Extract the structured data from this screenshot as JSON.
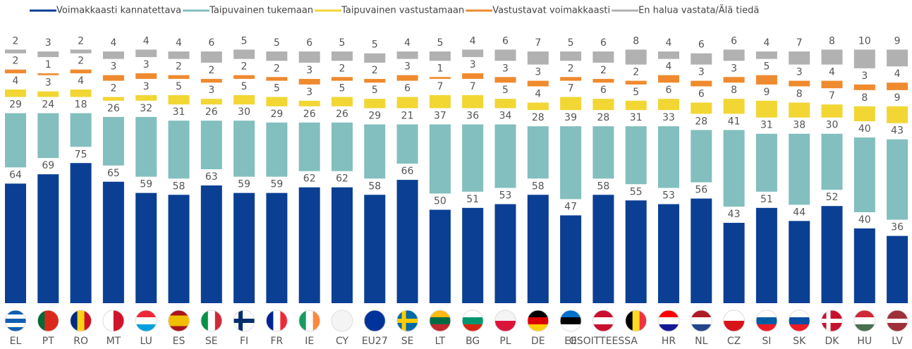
{
  "chart_data": {
    "type": "stacked-bar",
    "categories": [
      "EL",
      "PT",
      "RO",
      "MT",
      "LU",
      "ES",
      "SE",
      "FI",
      "FR",
      "IE",
      "CY",
      "EU27",
      "SE",
      "LT",
      "BG",
      "PL",
      "DE",
      "EE",
      "OSOITTEESSA",
      null,
      "HR",
      "NL",
      "CZ",
      "SI",
      "SK",
      "DK",
      "HU",
      "LV"
    ],
    "series": [
      {
        "name": "Voimakkaasti kannatettava",
        "color": "#0b3f94",
        "values": [
          64,
          69,
          75,
          65,
          59,
          58,
          63,
          59,
          59,
          62,
          62,
          58,
          66,
          50,
          51,
          53,
          58,
          47,
          58,
          55,
          53,
          56,
          43,
          51,
          44,
          52,
          40,
          36
        ]
      },
      {
        "name": "Taipuvainen tukemaan",
        "color": "#82bfbe",
        "values": [
          29,
          24,
          18,
          26,
          32,
          31,
          26,
          30,
          29,
          26,
          26,
          29,
          21,
          37,
          36,
          34,
          28,
          39,
          28,
          31,
          33,
          28,
          41,
          31,
          38,
          30,
          40,
          43
        ]
      },
      {
        "name": "Taipuvainen vastustamaan",
        "color": "#f2d634",
        "values": [
          4,
          3,
          4,
          2,
          3,
          5,
          3,
          5,
          5,
          3,
          5,
          5,
          6,
          7,
          7,
          5,
          4,
          7,
          6,
          5,
          6,
          6,
          8,
          9,
          8,
          7,
          8,
          9
        ]
      },
      {
        "name": "Vastustavat voimakkaasti",
        "color": "#ef8a2e",
        "values": [
          2,
          1,
          2,
          3,
          3,
          2,
          2,
          2,
          2,
          3,
          2,
          2,
          3,
          1,
          3,
          3,
          3,
          2,
          2,
          2,
          4,
          3,
          3,
          5,
          3,
          4,
          3,
          4
        ]
      },
      {
        "name": "En halua vastata/Älä tiedä",
        "color": "#b1b1b1",
        "values": [
          2,
          3,
          2,
          4,
          4,
          4,
          6,
          5,
          5,
          6,
          5,
          5,
          4,
          5,
          4,
          6,
          7,
          5,
          6,
          8,
          4,
          6,
          6,
          4,
          7,
          8,
          10,
          9
        ]
      }
    ]
  }
}
